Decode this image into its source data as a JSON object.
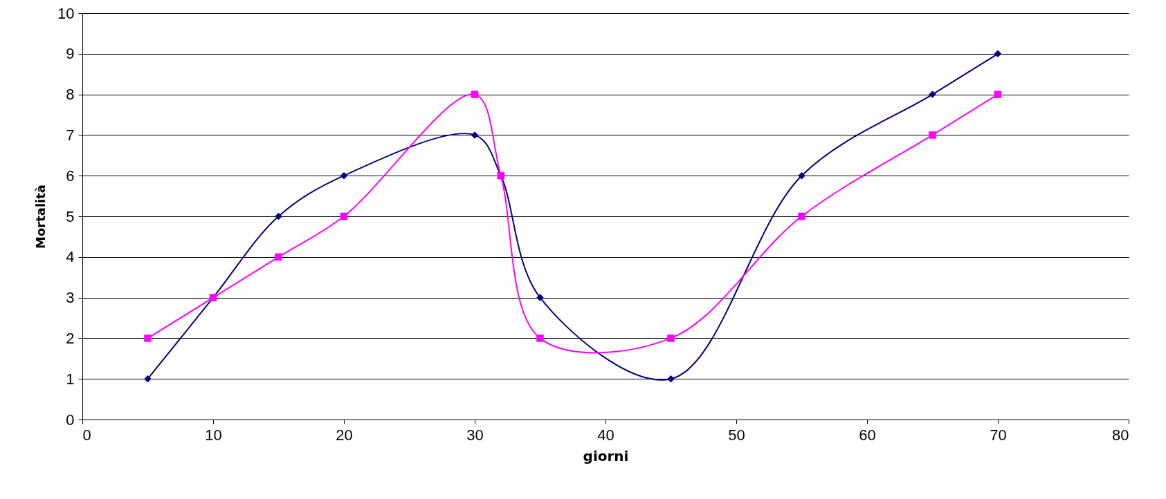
{
  "chart_data": {
    "type": "line",
    "xlabel": "giorni",
    "ylabel": "Mortalità",
    "x": [
      5,
      10,
      15,
      20,
      30,
      32,
      35,
      45,
      55,
      65,
      70
    ],
    "series": [
      {
        "color": "#000080",
        "marker": "diamond",
        "values": [
          1,
          3,
          5,
          6,
          7,
          6,
          3,
          1,
          6,
          8,
          9
        ]
      },
      {
        "color": "#ff00ff",
        "marker": "square",
        "values": [
          2,
          3,
          4,
          5,
          8,
          6,
          2,
          2,
          5,
          7,
          8
        ]
      }
    ],
    "xlim": [
      0,
      80
    ],
    "xticks": [
      0,
      10,
      20,
      30,
      40,
      50,
      60,
      70,
      80
    ],
    "ylim": [
      0,
      10
    ],
    "yticks": [
      0,
      1,
      2,
      3,
      4,
      5,
      6,
      7,
      8,
      9,
      10
    ],
    "grid": "y",
    "line_style": "solid"
  }
}
